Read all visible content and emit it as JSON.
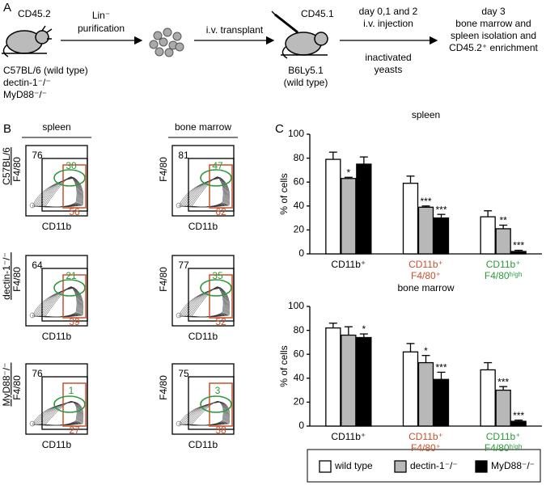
{
  "panel_labels": [
    "A",
    "B",
    "C"
  ],
  "panel_a": {
    "donor_marker": "CD45.2",
    "donor_strains": [
      "C57BL/6 (wild type)",
      "dectin-1⁻/⁻",
      "MyD88⁻/⁻"
    ],
    "step1": [
      "Lin⁻",
      "purification"
    ],
    "step2": "i.v. transplant",
    "recipient_marker": "CD45.1",
    "recipient_strain": [
      "B6Ly5.1",
      "(wild type)"
    ],
    "step3_top": [
      "day 0,1 and 2",
      "i.v. injection"
    ],
    "step3_bottom": [
      "inactivated",
      "yeasts"
    ],
    "final": [
      "day 3",
      "bone marrow and",
      "spleen isolation and",
      "CD45.2⁺ enrichment"
    ]
  },
  "panel_b": {
    "columns": [
      "spleen",
      "bone marrow"
    ],
    "rows": [
      "C57BL/6",
      "dectin-1⁻/⁻",
      "MyD88⁻/⁻"
    ],
    "x_label": "CD11b",
    "y_label": "F4/80",
    "plots": [
      [
        {
          "total": 76,
          "green": 30,
          "orange": 56
        },
        {
          "total": 81,
          "green": 47,
          "orange": 62
        }
      ],
      [
        {
          "total": 64,
          "green": 21,
          "orange": 39
        },
        {
          "total": 77,
          "green": 35,
          "orange": 52
        }
      ],
      [
        {
          "total": 76,
          "green": 1,
          "orange": 27
        },
        {
          "total": 75,
          "green": 3,
          "orange": 38
        }
      ]
    ]
  },
  "chart_data": [
    {
      "type": "bar",
      "title": "spleen",
      "y_label": "% of cells",
      "categories": [
        [
          "CD11b⁺"
        ],
        [
          "CD11b⁺",
          "F4/80⁺"
        ],
        [
          "CD11b⁺",
          "F4/80ʰⁱᵍʰ"
        ]
      ],
      "category_colors": [
        "#000000",
        "#c8502a",
        "#2a9a3a"
      ],
      "ylim": [
        0,
        100
      ],
      "yticks": [
        0,
        20,
        40,
        60,
        80,
        100
      ],
      "series": [
        {
          "name": "wild type",
          "color": "#ffffff",
          "values": [
            79,
            59,
            31
          ],
          "errors": [
            6,
            6,
            5
          ],
          "stars": [
            null,
            null,
            null
          ]
        },
        {
          "name": "dectin-1⁻/⁻",
          "color": "#b8b8b8",
          "values": [
            63,
            39,
            21
          ],
          "errors": [
            1,
            1,
            3
          ],
          "stars": [
            "*",
            "***",
            "**"
          ]
        },
        {
          "name": "MyD88⁻/⁻",
          "color": "#000000",
          "values": [
            75,
            30,
            2
          ],
          "errors": [
            6,
            3,
            1
          ],
          "stars": [
            null,
            "***",
            "***"
          ]
        }
      ]
    },
    {
      "type": "bar",
      "title": "bone marrow",
      "y_label": "% of cells",
      "categories": [
        [
          "CD11b⁺"
        ],
        [
          "CD11b⁺",
          "F4/80⁺"
        ],
        [
          "CD11b⁺",
          "F4/80ʰⁱᵍʰ"
        ]
      ],
      "category_colors": [
        "#000000",
        "#c8502a",
        "#2a9a3a"
      ],
      "ylim": [
        0,
        100
      ],
      "yticks": [
        0,
        20,
        40,
        60,
        80,
        100
      ],
      "series": [
        {
          "color": "#ffffff",
          "values": [
            82,
            62,
            47
          ],
          "errors": [
            4,
            7,
            6
          ],
          "stars": [
            null,
            null,
            null
          ]
        },
        {
          "color": "#b8b8b8",
          "values": [
            76,
            53,
            30
          ],
          "errors": [
            7,
            6,
            3
          ],
          "stars": [
            null,
            "*",
            "***"
          ]
        },
        {
          "color": "#000000",
          "values": [
            74,
            39,
            4
          ],
          "errors": [
            3,
            6,
            1
          ],
          "stars": [
            "*",
            "***",
            "***"
          ]
        }
      ]
    }
  ]
}
